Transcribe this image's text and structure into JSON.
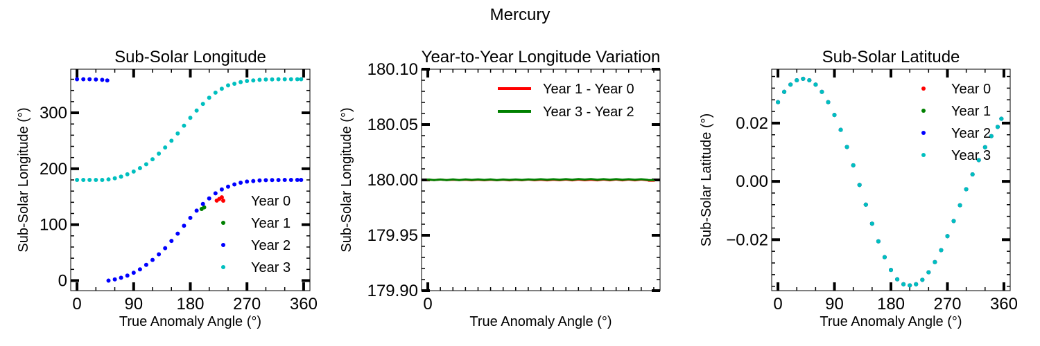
{
  "suptitle": "Mercury",
  "chart_data": [
    {
      "type": "scatter",
      "title": "Sub-Solar Longitude",
      "xlabel": "True Anomaly Angle (°)",
      "ylabel": "Sub-Solar Longitude (°)",
      "xlim": [
        -10,
        370
      ],
      "ylim": [
        -18,
        378
      ],
      "xticks": [
        0,
        90,
        180,
        270,
        360
      ],
      "xtick_labels": [
        "0",
        "90",
        "180",
        "270",
        "360"
      ],
      "yticks": [
        0,
        100,
        200,
        300
      ],
      "ytick_labels": [
        "0",
        "100",
        "200",
        "300"
      ],
      "legend": "lower-right",
      "series": [
        {
          "name": "Year 0",
          "color": "#ff0000",
          "curve": "lon_red"
        },
        {
          "name": "Year 1",
          "color": "#008000",
          "curve": "lon_green"
        },
        {
          "name": "Year 2",
          "color": "#0000ff",
          "curve": "lon_blue"
        },
        {
          "name": "Year 3",
          "color": "#00bfbf",
          "curve": "lon_cyan"
        }
      ],
      "curves": {
        "lon_blue": {
          "x": [
            0,
            10,
            20,
            30,
            40,
            48,
            50,
            60,
            70,
            80,
            90,
            100,
            110,
            120,
            130,
            140,
            150,
            160,
            170,
            180,
            190,
            200,
            210,
            220,
            230,
            240,
            250,
            260,
            270,
            280,
            290,
            300,
            310,
            320,
            330,
            340,
            350,
            356
          ],
          "y": [
            360,
            360,
            360,
            359.5,
            359,
            358,
            0,
            2,
            5,
            9,
            14,
            20,
            28,
            37,
            47,
            58,
            71,
            84,
            98,
            112,
            125,
            137,
            147,
            156,
            163,
            168,
            172,
            175,
            177,
            178,
            179,
            179.5,
            179.8,
            179.9,
            180,
            180,
            180,
            180
          ]
        },
        "lon_red": {
          "x": [
            222,
            226,
            230
          ],
          "y": [
            143,
            146,
            149
          ]
        },
        "lon_green": {
          "x": [
            198,
            202
          ],
          "y": [
            128,
            131
          ]
        },
        "lon_cyan": {
          "x": [
            0,
            10,
            20,
            30,
            40,
            50,
            60,
            70,
            80,
            90,
            100,
            110,
            120,
            130,
            140,
            150,
            160,
            170,
            180,
            190,
            200,
            210,
            220,
            230,
            240,
            250,
            260,
            270,
            280,
            290,
            300,
            310,
            320,
            330,
            340,
            350,
            356
          ],
          "y": [
            180,
            180,
            180,
            180,
            180,
            181,
            183,
            186,
            190,
            195,
            201,
            208,
            217,
            227,
            238,
            250,
            263,
            277,
            291,
            304,
            316,
            327,
            336,
            343,
            349,
            352,
            355,
            357,
            358,
            359,
            359.5,
            359.8,
            360,
            360,
            360,
            360,
            360
          ]
        }
      }
    },
    {
      "type": "line",
      "title": "Year-to-Year Longitude Variation",
      "xlabel": "True Anomaly Angle (°)",
      "ylabel": "Sub-Solar Longitude (°)",
      "xlim": [
        -10,
        370
      ],
      "ylim": [
        179.9,
        180.1
      ],
      "xticks": [
        0
      ],
      "xtick_labels": [
        "0"
      ],
      "yticks": [
        179.9,
        179.95,
        180.0,
        180.05,
        180.1
      ],
      "ytick_labels": [
        "179.90",
        "179.95",
        "180.00",
        "180.05",
        "180.10"
      ],
      "legend": "upper-right",
      "series": [
        {
          "name": "Year 1 - Year 0",
          "color": "#ff0000",
          "curve": "diff_red"
        },
        {
          "name": "Year 3 - Year 2",
          "color": "#008000",
          "curve": "diff_green"
        }
      ],
      "curves": {
        "diff_red": {
          "x": [
            0,
            0,
            2,
            10,
            20,
            30,
            40,
            50,
            60,
            70,
            80,
            90,
            100,
            110,
            120,
            130,
            140,
            150,
            160,
            170,
            180,
            190,
            200,
            210,
            220,
            230,
            240,
            250,
            260,
            270,
            280,
            290,
            300,
            310,
            320,
            330,
            340,
            350,
            352,
            360,
            360
          ],
          "y": [
            179.9994,
            180.0002,
            180.0002,
            179.9999,
            180.0003,
            179.9998,
            180.0002,
            179.9998,
            180.0002,
            179.9997,
            180.0002,
            179.9997,
            180.0002,
            179.9997,
            180.0002,
            179.9996,
            180.0002,
            179.9997,
            180.0003,
            179.9997,
            180.0002,
            179.9996,
            180.0002,
            179.9997,
            180.0003,
            179.9996,
            180.0003,
            179.9997,
            180.0002,
            179.9996,
            180.0003,
            179.9996,
            180.0004,
            179.9996,
            180.0003,
            179.9996,
            180.0003,
            179.9997,
            179.9993,
            179.9993,
            179.9999
          ]
        },
        "diff_green": {
          "x": [
            0,
            0,
            2,
            10,
            20,
            30,
            40,
            50,
            60,
            70,
            80,
            90,
            100,
            110,
            120,
            130,
            140,
            150,
            160,
            170,
            180,
            190,
            200,
            210,
            220,
            230,
            240,
            250,
            260,
            270,
            280,
            290,
            300,
            310,
            320,
            330,
            340,
            350,
            352,
            360,
            360
          ],
          "y": [
            179.9996,
            180.0003,
            180.0003,
            179.9999,
            180.0004,
            179.9999,
            180.0005,
            179.9999,
            180.0005,
            180.0,
            180.0005,
            180.0,
            180.0005,
            179.9999,
            180.0004,
            180.0,
            180.0004,
            180.0,
            180.0005,
            180.0001,
            180.0006,
            180.0001,
            180.0006,
            180.0002,
            180.0007,
            180.0002,
            180.0008,
            180.0003,
            180.0008,
            180.0002,
            180.0007,
            180.0002,
            180.0007,
            180.0002,
            180.0006,
            180.0001,
            180.0006,
            180.0001,
            179.9998,
            179.9998,
            180.0
          ]
        }
      }
    },
    {
      "type": "scatter",
      "title": "Sub-Solar Latitude",
      "xlabel": "True Anomaly Angle (°)",
      "ylabel": "Sub-Solar Latitude (°)",
      "xlim": [
        -10,
        370
      ],
      "ylim": [
        -0.0375,
        0.0385
      ],
      "xticks": [
        0,
        90,
        180,
        270,
        360
      ],
      "xtick_labels": [
        "0",
        "90",
        "180",
        "270",
        "360"
      ],
      "yticks": [
        -0.02,
        0.0,
        0.02
      ],
      "ytick_labels": [
        "−0.02",
        "0.00",
        "0.02"
      ],
      "legend": "upper-right",
      "series": [
        {
          "name": "Year 0",
          "color": "#ff0000",
          "curve": "lat"
        },
        {
          "name": "Year 1",
          "color": "#008000",
          "curve": "lat"
        },
        {
          "name": "Year 2",
          "color": "#0000ff",
          "curve": "lat"
        },
        {
          "name": "Year 3",
          "color": "#00bfbf",
          "curve": "lat"
        }
      ],
      "curves": {
        "lat": {
          "x": [
            0,
            10,
            20,
            30,
            40,
            50,
            60,
            70,
            80,
            90,
            100,
            110,
            120,
            130,
            140,
            150,
            160,
            170,
            180,
            190,
            200,
            210,
            220,
            230,
            240,
            250,
            260,
            270,
            280,
            290,
            300,
            310,
            320,
            330,
            340,
            350,
            356
          ],
          "y": [
            0.0272,
            0.0307,
            0.0332,
            0.0347,
            0.0352,
            0.0347,
            0.0332,
            0.0307,
            0.0272,
            0.0228,
            0.0177,
            0.0118,
            0.0055,
            -0.0012,
            -0.008,
            -0.0145,
            -0.0206,
            -0.026,
            -0.0304,
            -0.0336,
            -0.0353,
            -0.0357,
            -0.0353,
            -0.0338,
            -0.0312,
            -0.0277,
            -0.0236,
            -0.0188,
            -0.0136,
            -0.0082,
            -0.0027,
            0.0024,
            0.0073,
            0.0117,
            0.0155,
            0.0187,
            0.0215
          ]
        }
      }
    }
  ]
}
